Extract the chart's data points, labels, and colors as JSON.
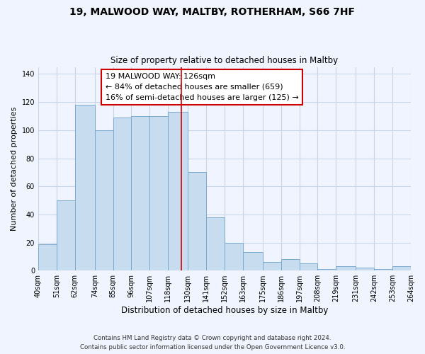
{
  "title": "19, MALWOOD WAY, MALTBY, ROTHERHAM, S66 7HF",
  "subtitle": "Size of property relative to detached houses in Maltby",
  "xlabel": "Distribution of detached houses by size in Maltby",
  "ylabel": "Number of detached properties",
  "bar_color": "#c8dcf0",
  "bar_edge_color": "#7aaad0",
  "bin_edges": [
    40,
    51,
    62,
    74,
    85,
    96,
    107,
    118,
    130,
    141,
    152,
    163,
    175,
    186,
    197,
    208,
    219,
    231,
    242,
    253,
    264
  ],
  "bar_heights": [
    19,
    50,
    118,
    100,
    109,
    110,
    110,
    113,
    70,
    38,
    20,
    13,
    6,
    8,
    5,
    1,
    3,
    2,
    1,
    3
  ],
  "tick_labels": [
    "40sqm",
    "51sqm",
    "62sqm",
    "74sqm",
    "85sqm",
    "96sqm",
    "107sqm",
    "118sqm",
    "130sqm",
    "141sqm",
    "152sqm",
    "163sqm",
    "175sqm",
    "186sqm",
    "197sqm",
    "208sqm",
    "219sqm",
    "231sqm",
    "242sqm",
    "253sqm",
    "264sqm"
  ],
  "vline_x": 126,
  "vline_color": "#cc0000",
  "annotation_box_text": "19 MALWOOD WAY: 126sqm\n← 84% of detached houses are smaller (659)\n16% of semi-detached houses are larger (125) →",
  "ylim": [
    0,
    145
  ],
  "yticks": [
    0,
    20,
    40,
    60,
    80,
    100,
    120,
    140
  ],
  "footer_line1": "Contains HM Land Registry data © Crown copyright and database right 2024.",
  "footer_line2": "Contains public sector information licensed under the Open Government Licence v3.0.",
  "background_color": "#f0f4ff",
  "grid_color": "#c8d4e8"
}
